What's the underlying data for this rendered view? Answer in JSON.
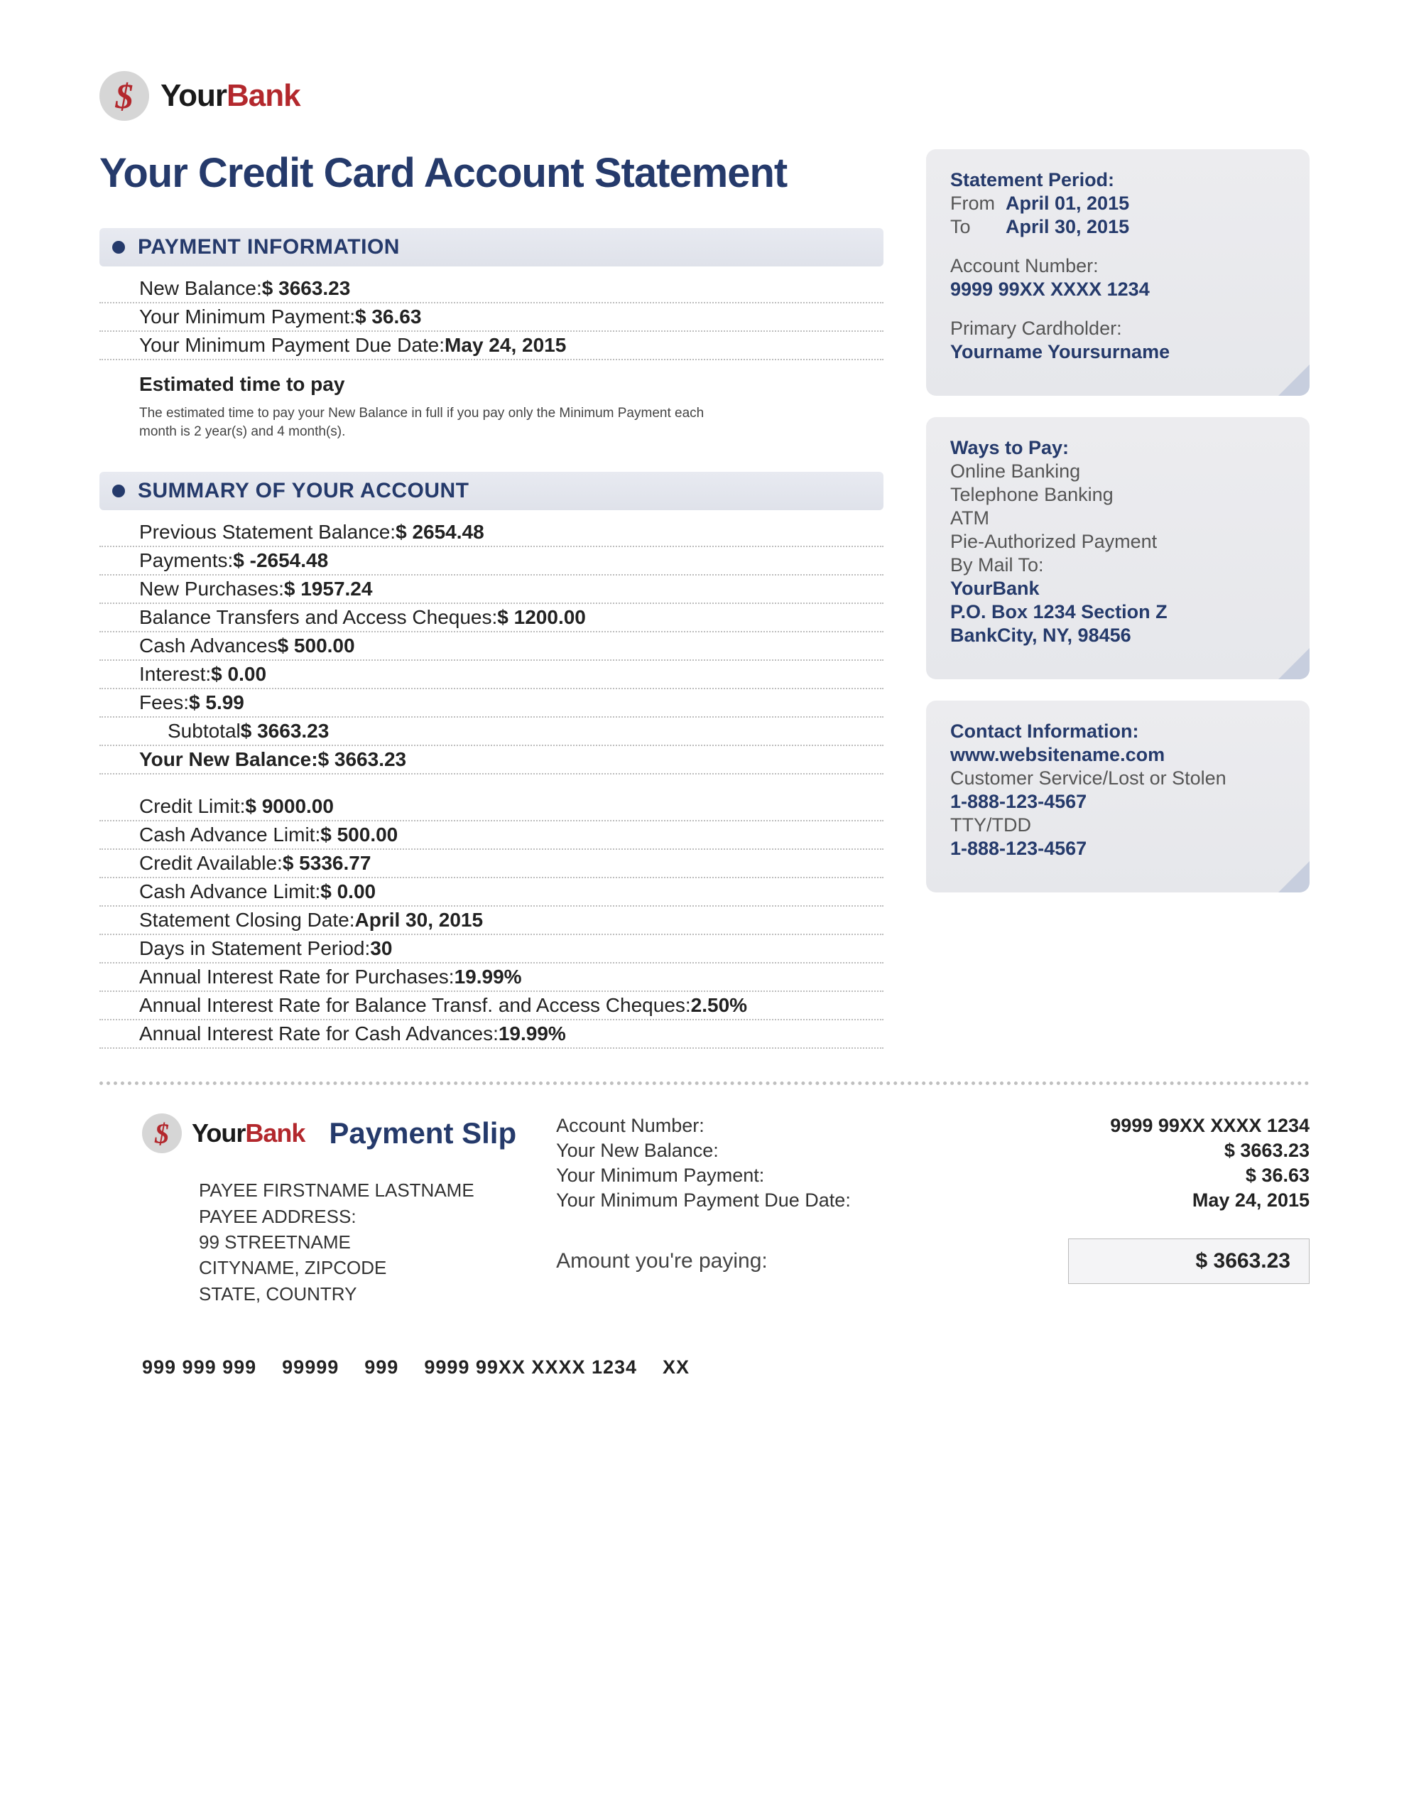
{
  "brand": {
    "your": "Your",
    "bank": "Bank",
    "dollar": "$"
  },
  "title": "Your Credit Card Account Statement",
  "statement_period": {
    "heading": "Statement Period:",
    "from_label": "From",
    "from_date": "April 01, 2015",
    "to_label": "To",
    "to_date": "April 30, 2015"
  },
  "account": {
    "number_label": "Account Number:",
    "number": "9999 99XX XXXX 1234",
    "holder_label": "Primary Cardholder:",
    "holder": "Yourname Yoursurname"
  },
  "payment_info": {
    "heading": "PAYMENT INFORMATION",
    "rows": [
      {
        "label": "New Balance:",
        "value": "$  3663.23"
      },
      {
        "label": "Your Minimum Payment:",
        "value": "$  36.63"
      },
      {
        "label": "Your Minimum Payment Due Date:",
        "value": "May 24, 2015"
      }
    ],
    "est_title": "Estimated time to pay",
    "est_note": "The estimated time to pay your New Balance in full if you pay only the Minimum Payment each month is 2 year(s) and 4 month(s)."
  },
  "summary": {
    "heading": "SUMMARY OF YOUR ACCOUNT",
    "group1": [
      {
        "label": "Previous Statement Balance:",
        "value": "$  2654.48"
      },
      {
        "label": "Payments:",
        "value": "$ -2654.48"
      },
      {
        "label": "New Purchases:",
        "value": "$  1957.24"
      },
      {
        "label": "Balance Transfers and Access Cheques:",
        "value": "$  1200.00"
      },
      {
        "label": "Cash Advances",
        "value": "$   500.00"
      },
      {
        "label": "Interest:",
        "value": "$   0.00"
      },
      {
        "label": "Fees:",
        "value": "$   5.99"
      },
      {
        "label": "Subtotal",
        "value": "$  3663.23",
        "indent": true
      },
      {
        "label": "Your New Balance:",
        "value": "$  3663.23",
        "bold": true
      }
    ],
    "group2": [
      {
        "label": "Credit Limit:",
        "value": "$  9000.00"
      },
      {
        "label": "Cash Advance Limit:",
        "value": "$   500.00"
      },
      {
        "label": "Credit Available:",
        "value": "$  5336.77"
      },
      {
        "label": "Cash Advance Limit:",
        "value": "$   0.00"
      },
      {
        "label": "Statement Closing Date:",
        "value": "April 30, 2015"
      },
      {
        "label": "Days in Statement Period:",
        "value": "30"
      },
      {
        "label": "Annual Interest Rate for Purchases:",
        "value": "19.99%"
      },
      {
        "label": "Annual Interest Rate for Balance Transf. and Access Cheques:",
        "value": "2.50%"
      },
      {
        "label": "Annual Interest Rate for Cash Advances:",
        "value": "19.99%"
      }
    ]
  },
  "ways_to_pay": {
    "heading": "Ways to Pay:",
    "methods": [
      "Online Banking",
      "Telephone Banking",
      "ATM",
      "Pie-Authorized Payment"
    ],
    "mail_label": "By Mail To:",
    "mail_lines": [
      "YourBank",
      "P.O. Box 1234 Section Z",
      "BankCity, NY, 98456"
    ]
  },
  "contact": {
    "heading": "Contact Information:",
    "website": "www.websitename.com",
    "service_label": "Customer Service/Lost or Stolen",
    "phone1": "1-888-123-4567",
    "tty_label": "TTY/TDD",
    "phone2": "1-888-123-4567"
  },
  "slip": {
    "title": "Payment Slip",
    "rows": [
      {
        "label": "Account Number:",
        "value": "9999 99XX XXXX 1234"
      },
      {
        "label": "Your New Balance:",
        "value": "$  3663.23"
      },
      {
        "label": "Your Minimum Payment:",
        "value": "$  36.63"
      },
      {
        "label": "Your Minimum Payment Due Date:",
        "value": "May 24, 2015"
      }
    ],
    "payee": [
      "PAYEE FIRSTNAME LASTNAME",
      "PAYEE ADDRESS:",
      "99 STREETNAME",
      "CITYNAME, ZIPCODE",
      "STATE, COUNTRY"
    ],
    "paying_label": "Amount you're paying:",
    "paying_value": "$ 3663.23",
    "micr": [
      "999 999 999",
      "99999",
      "999",
      "9999 99XX XXXX 1234",
      "XX"
    ]
  }
}
